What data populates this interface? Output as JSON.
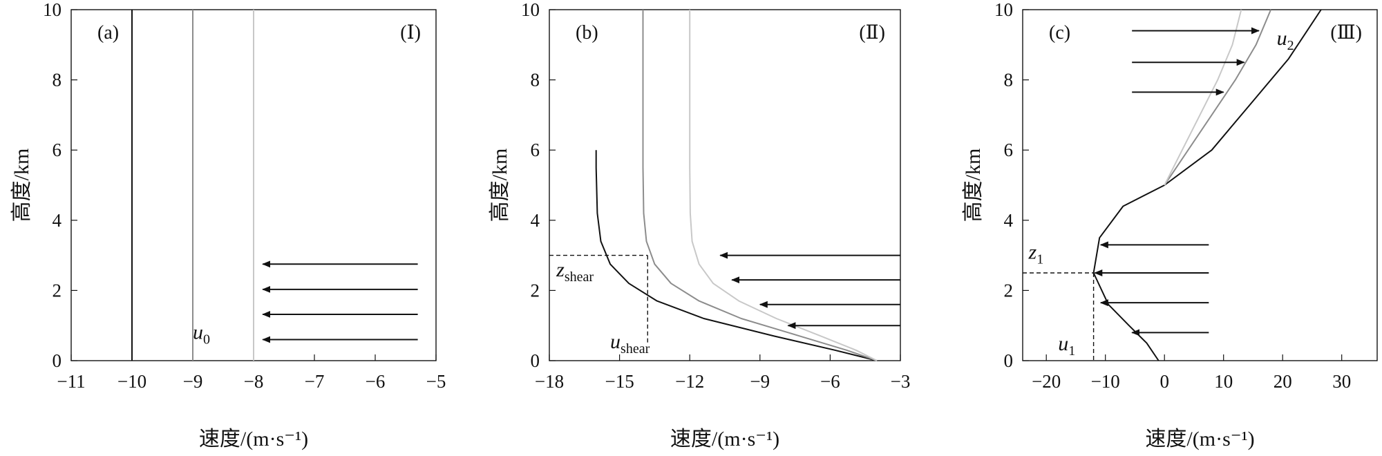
{
  "chart_data": [
    {
      "type": "line",
      "panel_label": "(a)",
      "regime_label": "(Ⅰ)",
      "xlabel": "速度/(m·s⁻¹)",
      "ylabel": "高度/km",
      "xlim": [
        -11,
        -5
      ],
      "ylim": [
        0,
        10
      ],
      "xticks": [
        -11,
        -10,
        -9,
        -8,
        -7,
        -6,
        -5
      ],
      "xtick_labels": [
        "−11",
        "−10",
        "−9",
        "−8",
        "−7",
        "−6",
        "−5"
      ],
      "yticks": [
        0,
        2,
        4,
        6,
        8,
        10
      ],
      "ytick_labels": [
        "0",
        "2",
        "4",
        "6",
        "8",
        "10"
      ],
      "grid": false,
      "series": [
        {
          "color": "#111111",
          "x": [
            -10,
            -10
          ],
          "y": [
            0,
            10
          ]
        },
        {
          "color": "#8c8c8c",
          "x": [
            -9,
            -9
          ],
          "y": [
            0,
            10
          ]
        },
        {
          "color": "#c8c8c8",
          "x": [
            -8,
            -8
          ],
          "y": [
            0,
            10
          ]
        }
      ],
      "arrows": [
        {
          "from": [
            -5.3,
            2.75
          ],
          "to": [
            -7.85,
            2.75
          ]
        },
        {
          "from": [
            -5.3,
            2.03
          ],
          "to": [
            -7.85,
            2.03
          ]
        },
        {
          "from": [
            -5.3,
            1.32
          ],
          "to": [
            -7.85,
            1.32
          ]
        },
        {
          "from": [
            -5.3,
            0.6
          ],
          "to": [
            -7.85,
            0.6
          ]
        }
      ],
      "annotations": [
        {
          "id": "u0",
          "main": "u",
          "sub": "0",
          "x": -9.0,
          "y": 0.62
        }
      ]
    },
    {
      "type": "line",
      "panel_label": "(b)",
      "regime_label": "(Ⅱ)",
      "xlabel": "速度/(m·s⁻¹)",
      "ylabel": "高度/km",
      "xlim": [
        -18,
        -3
      ],
      "ylim": [
        0,
        10
      ],
      "xticks": [
        -18,
        -15,
        -12,
        -9,
        -6,
        -3
      ],
      "xtick_labels": [
        "−18",
        "−15",
        "−12",
        "−9",
        "−6",
        "−3"
      ],
      "yticks": [
        0,
        2,
        4,
        6,
        8,
        10
      ],
      "ytick_labels": [
        "0",
        "2",
        "4",
        "6",
        "8",
        "10"
      ],
      "grid": false,
      "series": [
        {
          "color": "#111111",
          "x": [
            -4.0,
            -5.8,
            -8.4,
            -11.4,
            -13.4,
            -14.6,
            -15.4,
            -15.8,
            -15.95,
            -16.0,
            -16.0
          ],
          "y": [
            0,
            0.3,
            0.7,
            1.2,
            1.7,
            2.2,
            2.75,
            3.4,
            4.2,
            5.5,
            6.0
          ]
        },
        {
          "color": "#8c8c8c",
          "x": [
            -4.0,
            -5.3,
            -7.3,
            -9.8,
            -11.6,
            -12.8,
            -13.5,
            -13.85,
            -13.97,
            -14.0,
            -14.0
          ],
          "y": [
            0,
            0.3,
            0.7,
            1.2,
            1.7,
            2.2,
            2.75,
            3.4,
            4.2,
            5.5,
            10
          ]
        },
        {
          "color": "#c8c8c8",
          "x": [
            -4.0,
            -4.9,
            -6.4,
            -8.3,
            -9.9,
            -11.0,
            -11.6,
            -11.9,
            -11.98,
            -12.0,
            -12.0
          ],
          "y": [
            0,
            0.3,
            0.7,
            1.2,
            1.7,
            2.2,
            2.75,
            3.4,
            4.2,
            5.5,
            10
          ]
        }
      ],
      "arrows": [
        {
          "from": [
            -3.0,
            3.0
          ],
          "to": [
            -10.7,
            3.0
          ]
        },
        {
          "from": [
            -3.0,
            2.3
          ],
          "to": [
            -10.2,
            2.3
          ]
        },
        {
          "from": [
            -3.0,
            1.6
          ],
          "to": [
            -9.0,
            1.6
          ]
        },
        {
          "from": [
            -3.0,
            1.0
          ],
          "to": [
            -7.8,
            1.0
          ]
        }
      ],
      "guides": [
        {
          "from": [
            -18,
            3.0
          ],
          "to": [
            -13.8,
            3.0
          ]
        },
        {
          "from": [
            -13.8,
            3.0
          ],
          "to": [
            -13.8,
            0.5
          ]
        }
      ],
      "annotations": [
        {
          "id": "zshear",
          "main": "z",
          "sub": "shear",
          "x": -17.7,
          "y": 2.4
        },
        {
          "id": "ushear",
          "main": "u",
          "sub": "shear",
          "x": -15.4,
          "y": 0.35
        }
      ]
    },
    {
      "type": "line",
      "panel_label": "(c)",
      "regime_label": "(Ⅲ)",
      "xlabel": "速度/(m·s⁻¹)",
      "ylabel": "高度/km",
      "xlim": [
        -24,
        36
      ],
      "ylim": [
        0,
        10
      ],
      "xticks": [
        -20,
        -10,
        0,
        10,
        20,
        30
      ],
      "xtick_labels": [
        "−20",
        "−10",
        "0",
        "10",
        "20",
        "30"
      ],
      "yticks": [
        0,
        2,
        4,
        6,
        8,
        10
      ],
      "ytick_labels": [
        "0",
        "2",
        "4",
        "6",
        "8",
        "10"
      ],
      "grid": false,
      "series": [
        {
          "color": "#111111",
          "x": [
            -1,
            -3,
            -6,
            -9.5,
            -12,
            -11,
            -7,
            0,
            8,
            15,
            21,
            26.5
          ],
          "y": [
            0,
            0.5,
            1.0,
            1.6,
            2.5,
            3.5,
            4.4,
            5.0,
            6.0,
            7.4,
            8.6,
            10
          ]
        },
        {
          "color": "#8c8c8c",
          "x": [
            0,
            4,
            8,
            12,
            15.5,
            18
          ],
          "y": [
            5.0,
            6.0,
            7.0,
            8.0,
            9.0,
            10
          ]
        },
        {
          "color": "#c8c8c8",
          "x": [
            0,
            3,
            6,
            9,
            11.5,
            13
          ],
          "y": [
            5.0,
            6.0,
            7.0,
            8.0,
            9.0,
            10
          ]
        }
      ],
      "arrows": [
        {
          "from": [
            7.5,
            3.3
          ],
          "to": [
            -10.8,
            3.3
          ]
        },
        {
          "from": [
            7.5,
            2.5
          ],
          "to": [
            -11.8,
            2.5
          ]
        },
        {
          "from": [
            7.5,
            1.65
          ],
          "to": [
            -10.8,
            1.65
          ]
        },
        {
          "from": [
            7.5,
            0.8
          ],
          "to": [
            -5.5,
            0.8
          ]
        },
        {
          "from": [
            -5.5,
            9.4
          ],
          "to": [
            16.0,
            9.4
          ]
        },
        {
          "from": [
            -5.5,
            8.5
          ],
          "to": [
            13.5,
            8.5
          ]
        },
        {
          "from": [
            -5.5,
            7.65
          ],
          "to": [
            10.0,
            7.65
          ]
        }
      ],
      "guides": [
        {
          "from": [
            -24,
            2.5
          ],
          "to": [
            -12.0,
            2.5
          ]
        },
        {
          "from": [
            -12.0,
            2.5
          ],
          "to": [
            -12.0,
            0
          ]
        }
      ],
      "annotations": [
        {
          "id": "z1",
          "main": "z",
          "sub": "1",
          "x": -23.0,
          "y": 2.9
        },
        {
          "id": "u1",
          "main": "u",
          "sub": "1",
          "x": -18.0,
          "y": 0.3
        },
        {
          "id": "u2",
          "main": "u",
          "sub": "2",
          "x": 19.0,
          "y": 9.0
        }
      ]
    }
  ]
}
